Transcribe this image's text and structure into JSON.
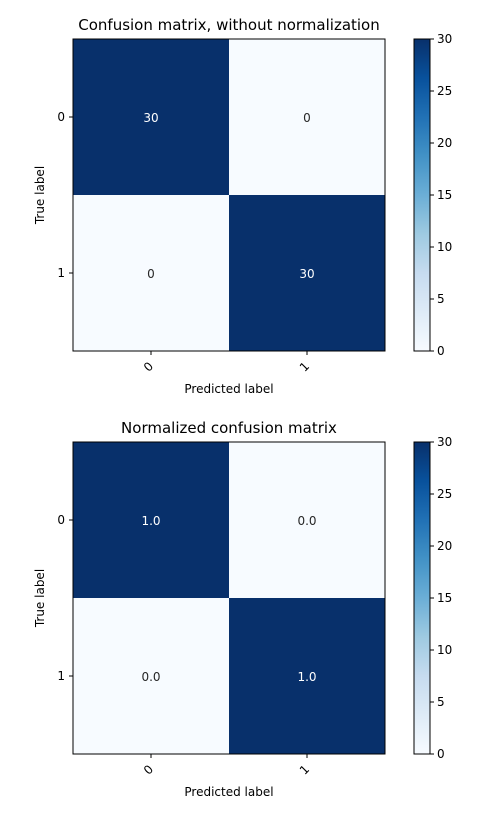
{
  "chart_data": [
    {
      "type": "heatmap",
      "title": "Confusion matrix, without normalization",
      "xlabel": "Predicted label",
      "ylabel": "True label",
      "x_categories": [
        "0",
        "1"
      ],
      "y_categories": [
        "0",
        "1"
      ],
      "values": [
        [
          30,
          0
        ],
        [
          0,
          30
        ]
      ],
      "cell_labels": [
        [
          "30",
          "0"
        ],
        [
          "0",
          "30"
        ]
      ],
      "colormap": "Blues",
      "color_low": "#f7fbff",
      "color_high": "#08306b",
      "text_dark": "#262626",
      "text_light": "#ffffff",
      "colorbar": {
        "range": [
          0,
          30
        ],
        "ticks": [
          "0",
          "5",
          "10",
          "15",
          "20",
          "25",
          "30"
        ]
      },
      "x_tick_rotation": "45deg"
    },
    {
      "type": "heatmap",
      "title": "Normalized confusion matrix",
      "xlabel": "Predicted label",
      "ylabel": "True label",
      "x_categories": [
        "0",
        "1"
      ],
      "y_categories": [
        "0",
        "1"
      ],
      "values": [
        [
          1.0,
          0.0
        ],
        [
          0.0,
          1.0
        ]
      ],
      "cell_labels": [
        [
          "1.0",
          "0.0"
        ],
        [
          "0.0",
          "1.0"
        ]
      ],
      "colormap": "Blues",
      "color_low": "#f7fbff",
      "color_high": "#08306b",
      "text_dark": "#262626",
      "text_light": "#ffffff",
      "colorbar": {
        "range": [
          0,
          30
        ],
        "ticks": [
          "0",
          "5",
          "10",
          "15",
          "20",
          "25",
          "30"
        ]
      },
      "x_tick_rotation": "45deg"
    }
  ]
}
